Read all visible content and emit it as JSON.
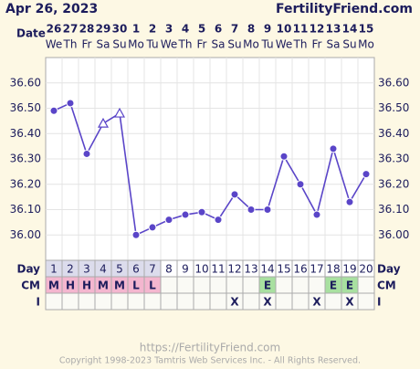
{
  "chart_data": {
    "type": "line",
    "title": "Apr 26, 2023",
    "site": "FertilityFriend.com",
    "date_label": "Date",
    "dates": [
      "26",
      "27",
      "28",
      "29",
      "30",
      "1",
      "2",
      "3",
      "4",
      "5",
      "6",
      "7",
      "8",
      "9",
      "10",
      "11",
      "12",
      "13",
      "14",
      "15"
    ],
    "weekdays": [
      "We",
      "Th",
      "Fr",
      "Sa",
      "Su",
      "Mo",
      "Tu",
      "We",
      "Th",
      "Fr",
      "Sa",
      "Su",
      "Mo",
      "Tu",
      "We",
      "Th",
      "Fr",
      "Sa",
      "Su",
      "Mo"
    ],
    "day_label": "Day",
    "categories": [
      1,
      2,
      3,
      4,
      5,
      6,
      7,
      8,
      9,
      10,
      11,
      12,
      13,
      14,
      15,
      16,
      17,
      18,
      19,
      20
    ],
    "values": [
      36.49,
      36.52,
      36.32,
      36.44,
      36.48,
      36.0,
      36.03,
      36.06,
      36.08,
      36.09,
      36.06,
      36.16,
      36.1,
      36.1,
      36.31,
      36.2,
      36.08,
      36.34,
      36.13,
      36.24
    ],
    "markers": [
      "circle",
      "circle",
      "circle",
      "triangle",
      "triangle",
      "circle",
      "circle",
      "circle",
      "circle",
      "circle",
      "circle",
      "circle",
      "circle",
      "circle",
      "circle",
      "circle",
      "circle",
      "circle",
      "circle",
      "circle"
    ],
    "color": "#5a45c8",
    "ylim": [
      35.9,
      36.7
    ],
    "yticks": [
      {
        "value": 36.0,
        "label": "36.00"
      },
      {
        "value": 36.1,
        "label": "36.10"
      },
      {
        "value": 36.2,
        "label": "36.20"
      },
      {
        "value": 36.3,
        "label": "36.30"
      },
      {
        "value": 36.4,
        "label": "36.40"
      },
      {
        "value": 36.5,
        "label": "36.50"
      },
      {
        "value": 36.6,
        "label": "36.60"
      }
    ],
    "grid": true,
    "period_days": 7,
    "period_color": "#dcdcec",
    "cm": {
      "label": "CM",
      "values": [
        "M",
        "H",
        "H",
        "M",
        "M",
        "L",
        "L",
        null,
        null,
        null,
        null,
        null,
        null,
        "E",
        null,
        null,
        null,
        "E",
        "E",
        null
      ],
      "colors": {
        "M": "#f4b6cf",
        "H": "#f4b6cf",
        "L": "#f4b6cf",
        "E": "#a8e0a0"
      }
    },
    "intercourse": {
      "label": "I",
      "values": [
        null,
        null,
        null,
        null,
        null,
        null,
        null,
        null,
        null,
        null,
        null,
        "X",
        null,
        "X",
        null,
        null,
        "X",
        null,
        "X",
        null
      ]
    },
    "footer_url": "https://FertilityFriend.com",
    "copyright": "Copyright 1998-2023 Tamtris Web Services Inc. - All Rights Reserved."
  }
}
